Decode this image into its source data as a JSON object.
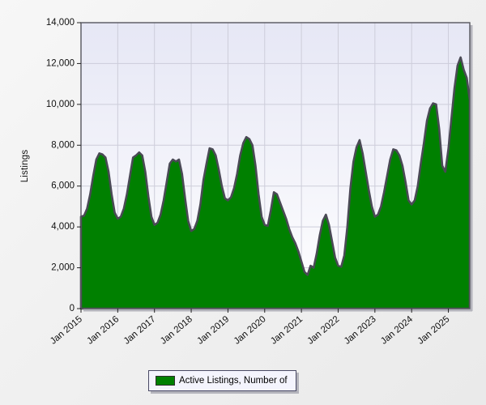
{
  "window": {
    "background_top": "#f7f7f7",
    "background_bottom": "#eaeaea"
  },
  "chart_data": {
    "type": "area",
    "title": "",
    "xlabel": "",
    "ylabel": "Listings",
    "ylim": [
      0,
      14000
    ],
    "y_tick_step": 2000,
    "grid": true,
    "legend_position": "bottom",
    "plot_background_top": "#e6e7f5",
    "plot_background_bottom": "#ffffff",
    "grid_color": "#cdcdda",
    "border_color": "#56565e",
    "shadow_color": "#b4b4bc",
    "tick_label_color": "#111111",
    "y_tick_labels": [
      "0",
      "2,000",
      "4,000",
      "6,000",
      "8,000",
      "10,000",
      "12,000",
      "14,000"
    ],
    "x_tick_labels": [
      "Jan 2015",
      "Jan 2016",
      "Jan 2017",
      "Jan 2018",
      "Jan 2019",
      "Jan 2020",
      "Jan 2021",
      "Jan 2022",
      "Jan 2023",
      "Jan 2024",
      "Jan 2025"
    ],
    "months_per_x_interval": 12,
    "series": [
      {
        "name": "Active Listings, Number of",
        "color": "#008000",
        "outline_color": "#4a4a55",
        "start_month": "Jan 2015",
        "end_month": "Aug 2025",
        "values": [
          4500,
          4550,
          4900,
          5600,
          6500,
          7300,
          7600,
          7550,
          7400,
          6700,
          5600,
          4700,
          4400,
          4500,
          4900,
          5600,
          6500,
          7400,
          7500,
          7650,
          7500,
          6700,
          5500,
          4500,
          4100,
          4200,
          4600,
          5300,
          6200,
          7100,
          7300,
          7200,
          7300,
          6600,
          5400,
          4300,
          3800,
          3900,
          4300,
          5100,
          6300,
          7100,
          7850,
          7800,
          7500,
          6800,
          6000,
          5400,
          5300,
          5450,
          5900,
          6600,
          7500,
          8100,
          8400,
          8300,
          8000,
          7000,
          5600,
          4500,
          4100,
          4050,
          4800,
          5700,
          5600,
          5200,
          4800,
          4400,
          3900,
          3500,
          3200,
          2800,
          2300,
          1800,
          1650,
          2100,
          2000,
          2700,
          3600,
          4300,
          4600,
          4100,
          3300,
          2500,
          2100,
          2050,
          2600,
          4000,
          5900,
          7200,
          7900,
          8250,
          7600,
          6700,
          5800,
          5000,
          4500,
          4600,
          5000,
          5700,
          6500,
          7300,
          7800,
          7750,
          7500,
          7000,
          6200,
          5300,
          5100,
          5300,
          6000,
          7100,
          8100,
          9200,
          9800,
          10050,
          10000,
          8800,
          7000,
          6700,
          7800,
          9300,
          10800,
          11900,
          12300,
          11700,
          11300,
          10200
        ]
      }
    ]
  },
  "legend": {
    "label": "Active Listings, Number of",
    "swatch_color": "#008000"
  }
}
